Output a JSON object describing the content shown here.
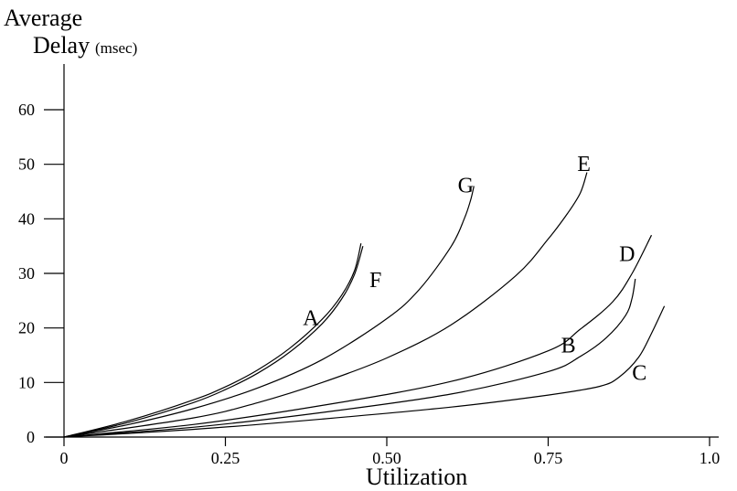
{
  "chart_data": {
    "type": "line",
    "ylabel_line1": "Average",
    "ylabel_line2": "Delay",
    "ylabel_unit": "(msec)",
    "xlabel": "Utilization",
    "xlim": [
      0,
      1.0
    ],
    "ylim": [
      0,
      65
    ],
    "x_ticks": [
      {
        "value": 0,
        "label": "0"
      },
      {
        "value": 0.25,
        "label": "0.25"
      },
      {
        "value": 0.5,
        "label": "0.50"
      },
      {
        "value": 0.75,
        "label": "0.75"
      },
      {
        "value": 1.0,
        "label": "1.0"
      }
    ],
    "y_ticks": [
      {
        "value": 0,
        "label": "0"
      },
      {
        "value": 10,
        "label": "10"
      },
      {
        "value": 20,
        "label": "20"
      },
      {
        "value": 30,
        "label": "30"
      },
      {
        "value": 40,
        "label": "40"
      },
      {
        "value": 50,
        "label": "50"
      },
      {
        "value": 60,
        "label": "60"
      }
    ],
    "grid": false,
    "series": [
      {
        "name": "A",
        "x": [
          0,
          0.1,
          0.2,
          0.25,
          0.3,
          0.35,
          0.4,
          0.43,
          0.45,
          0.46
        ],
        "y": [
          0,
          3,
          6.8,
          9.2,
          12.3,
          16.3,
          21.6,
          26,
          30.5,
          35.5
        ],
        "label_at": [
          0.37,
          20.5
        ]
      },
      {
        "name": "F",
        "x": [
          0,
          0.1,
          0.2,
          0.25,
          0.3,
          0.35,
          0.4,
          0.43,
          0.45,
          0.463
        ],
        "y": [
          0,
          2.7,
          6.3,
          8.7,
          11.7,
          15.6,
          20.8,
          25.3,
          29.8,
          35
        ],
        "label_at": [
          0.473,
          27.5
        ]
      },
      {
        "name": "G",
        "x": [
          0,
          0.1,
          0.2,
          0.3,
          0.4,
          0.5,
          0.55,
          0.6,
          0.62,
          0.63,
          0.635
        ],
        "y": [
          0,
          2.3,
          5.2,
          9,
          14.2,
          21.7,
          27,
          35,
          40,
          43.5,
          46
        ],
        "label_at": [
          0.61,
          44.8
        ]
      },
      {
        "name": "E",
        "x": [
          0,
          0.2,
          0.3,
          0.4,
          0.5,
          0.6,
          0.7,
          0.75,
          0.78,
          0.8,
          0.81
        ],
        "y": [
          0,
          3.5,
          6.3,
          10,
          14.5,
          20.6,
          29.6,
          36.3,
          41,
          44.8,
          48.5
        ],
        "label_at": [
          0.795,
          48.8
        ]
      },
      {
        "name": "D",
        "x": [
          0,
          0.2,
          0.4,
          0.6,
          0.75,
          0.8,
          0.85,
          0.88,
          0.91
        ],
        "y": [
          0,
          2.3,
          5.8,
          10.2,
          15.8,
          19.8,
          24.8,
          30,
          37
        ],
        "label_at": [
          0.86,
          32.3
        ]
      },
      {
        "name": "B",
        "x": [
          0,
          0.2,
          0.4,
          0.6,
          0.75,
          0.8,
          0.84,
          0.87,
          0.88,
          0.885
        ],
        "y": [
          0,
          1.8,
          4.5,
          7.9,
          12,
          14.8,
          18.2,
          22.3,
          25.5,
          29
        ],
        "label_at": [
          0.77,
          15.5
        ]
      },
      {
        "name": "C",
        "x": [
          0,
          0.2,
          0.4,
          0.6,
          0.75,
          0.83,
          0.86,
          0.89,
          0.91,
          0.93
        ],
        "y": [
          0,
          1.4,
          3.3,
          5.5,
          7.7,
          9.3,
          11,
          14.6,
          19,
          24
        ],
        "label_at": [
          0.88,
          10.5
        ]
      }
    ]
  }
}
